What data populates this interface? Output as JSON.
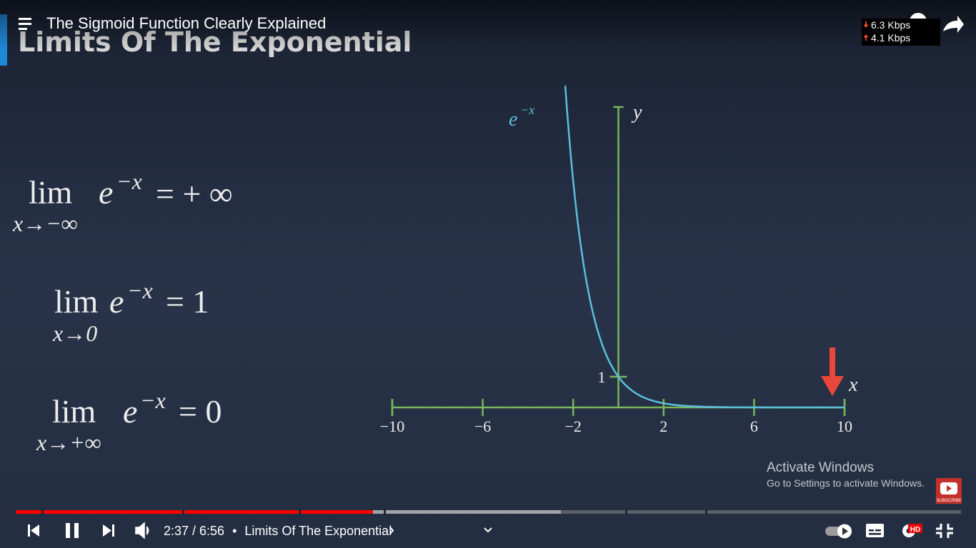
{
  "player": {
    "video_title": "The Sigmoid Function Clearly Explained",
    "network": {
      "down": "6.3 Kbps",
      "up": "4.1 Kbps"
    },
    "time": "2:37 / 6:56",
    "chapter_separator": "•",
    "chapter": "Limits Of The Exponential",
    "hd_badge": "HD",
    "subscribe_badge": "SUBSCRIBE"
  },
  "slide": {
    "heading": "Limits Of The Exponential",
    "limits": [
      {
        "operator": "lim",
        "subscript": "x→−∞",
        "base": "e",
        "exponent": "−x",
        "result": "= + ∞"
      },
      {
        "operator": "lim",
        "subscript": "x→0",
        "base": "e",
        "exponent": "−x",
        "result": "= 1"
      },
      {
        "operator": "lim",
        "subscript": "x→+∞",
        "base": "e",
        "exponent": "−x",
        "result": "= 0"
      }
    ],
    "plot": {
      "curve_label": "e",
      "curve_label_exponent": "−x",
      "x_label": "x",
      "y_label": "y",
      "xlim": [
        -10,
        10
      ],
      "xticks": [
        {
          "value": -10,
          "label": "−10"
        },
        {
          "value": -6,
          "label": "−6"
        },
        {
          "value": -2,
          "label": "−2"
        },
        2,
        6,
        10
      ],
      "yticks": [
        1
      ]
    }
  },
  "watermark": {
    "title": "Activate Windows",
    "subtitle": "Go to Settings to activate Windows."
  }
}
